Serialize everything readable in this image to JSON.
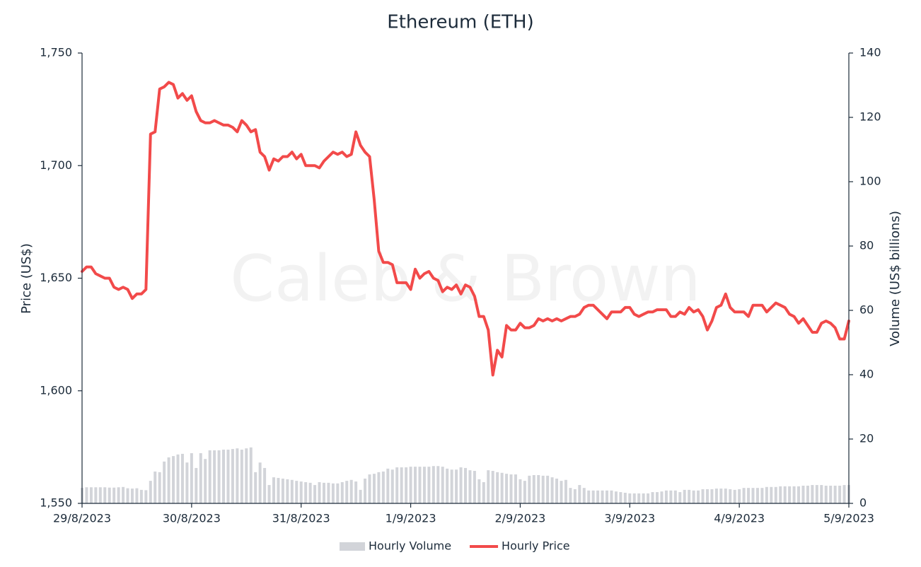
{
  "chart_data": {
    "type": "combo",
    "title": "Ethereum (ETH)",
    "y_label": "Price (US$)",
    "y2_label": "Volume (US$ billions)",
    "watermark": "Caleb & Brown",
    "categories": [
      "29/8/2023",
      null,
      null,
      null,
      null,
      null,
      null,
      null,
      null,
      null,
      null,
      null,
      null,
      null,
      null,
      null,
      null,
      null,
      null,
      null,
      null,
      null,
      null,
      null,
      "30/8/2023",
      null,
      null,
      null,
      null,
      null,
      null,
      null,
      null,
      null,
      null,
      null,
      null,
      null,
      null,
      null,
      null,
      null,
      null,
      null,
      null,
      null,
      null,
      null,
      "31/8/2023",
      null,
      null,
      null,
      null,
      null,
      null,
      null,
      null,
      null,
      null,
      null,
      null,
      null,
      null,
      null,
      null,
      null,
      null,
      null,
      null,
      null,
      null,
      null,
      "1/9/2023",
      null,
      null,
      null,
      null,
      null,
      null,
      null,
      null,
      null,
      null,
      null,
      null,
      null,
      null,
      null,
      null,
      null,
      null,
      null,
      null,
      null,
      null,
      null,
      "2/9/2023",
      null,
      null,
      null,
      null,
      null,
      null,
      null,
      null,
      null,
      null,
      null,
      null,
      null,
      null,
      null,
      null,
      null,
      null,
      null,
      null,
      null,
      null,
      null,
      "3/9/2023",
      null,
      null,
      null,
      null,
      null,
      null,
      null,
      null,
      null,
      null,
      null,
      null,
      null,
      null,
      null,
      null,
      null,
      null,
      null,
      null,
      null,
      null,
      null,
      "4/9/2023",
      null,
      null,
      null,
      null,
      null,
      null,
      null,
      null,
      null,
      null,
      null,
      null,
      null,
      null,
      null,
      null,
      null,
      null,
      null,
      null,
      null,
      null,
      null,
      "5/9/2023"
    ],
    "series": [
      {
        "name": "Hourly Volume",
        "type": "bar",
        "axis": "y2",
        "color": "#d2d4d9",
        "values": [
          4.8,
          5.0,
          5.0,
          5.0,
          5.0,
          5.0,
          4.9,
          4.9,
          5.0,
          5.1,
          4.7,
          4.6,
          4.7,
          4.2,
          4.1,
          7.0,
          9.9,
          9.7,
          13.0,
          14.3,
          14.7,
          15.2,
          15.4,
          12.7,
          15.6,
          11.0,
          15.6,
          13.8,
          16.5,
          16.5,
          16.5,
          16.7,
          16.7,
          16.9,
          17.1,
          16.7,
          17.1,
          17.4,
          9.7,
          12.7,
          11.0,
          5.7,
          8.1,
          7.9,
          7.7,
          7.5,
          7.3,
          7.0,
          6.8,
          6.6,
          6.4,
          5.7,
          6.6,
          6.4,
          6.4,
          6.2,
          6.2,
          6.6,
          7.0,
          7.3,
          6.8,
          4.2,
          7.7,
          9.0,
          9.2,
          9.7,
          9.9,
          10.8,
          10.5,
          11.2,
          11.2,
          11.2,
          11.4,
          11.4,
          11.4,
          11.4,
          11.4,
          11.6,
          11.6,
          11.4,
          10.8,
          10.5,
          10.5,
          11.2,
          11.0,
          10.3,
          10.1,
          7.5,
          6.6,
          10.3,
          10.1,
          9.7,
          9.5,
          9.2,
          9.0,
          9.0,
          7.5,
          7.0,
          8.6,
          8.8,
          8.8,
          8.6,
          8.6,
          8.1,
          7.7,
          7.0,
          7.3,
          4.8,
          4.4,
          5.7,
          4.8,
          4.0,
          4.0,
          4.0,
          4.0,
          4.0,
          4.0,
          3.7,
          3.5,
          3.3,
          3.1,
          3.1,
          3.1,
          3.1,
          3.1,
          3.5,
          3.5,
          3.7,
          4.0,
          4.0,
          4.0,
          3.5,
          4.2,
          4.2,
          4.0,
          4.0,
          4.4,
          4.4,
          4.4,
          4.6,
          4.6,
          4.6,
          4.4,
          4.2,
          4.4,
          4.8,
          4.8,
          4.8,
          4.8,
          4.8,
          5.1,
          5.1,
          5.1,
          5.3,
          5.3,
          5.3,
          5.3,
          5.3,
          5.5,
          5.5,
          5.7,
          5.7,
          5.7,
          5.5,
          5.5,
          5.5,
          5.5,
          5.7,
          5.7
        ]
      },
      {
        "name": "Hourly Price",
        "type": "line",
        "color": "#f24a4a",
        "values": [
          1653,
          1655,
          1655,
          1652,
          1651,
          1650,
          1650,
          1646,
          1645,
          1646,
          1645,
          1641,
          1643,
          1643,
          1645,
          1714,
          1715,
          1734,
          1735,
          1737,
          1736,
          1730,
          1732,
          1729,
          1731,
          1724,
          1720,
          1719,
          1719,
          1720,
          1719,
          1718,
          1718,
          1717,
          1715,
          1720,
          1718,
          1715,
          1716,
          1706,
          1704,
          1698,
          1703,
          1702,
          1704,
          1704,
          1706,
          1703,
          1705,
          1700,
          1700,
          1700,
          1699,
          1702,
          1704,
          1706,
          1705,
          1706,
          1704,
          1705,
          1715,
          1709,
          1706,
          1704,
          1685,
          1662,
          1657,
          1657,
          1656,
          1648,
          1648,
          1648,
          1645,
          1654,
          1650,
          1652,
          1653,
          1650,
          1649,
          1644,
          1646,
          1645,
          1647,
          1643,
          1647,
          1646,
          1642,
          1633,
          1633,
          1627,
          1607,
          1618,
          1615,
          1629,
          1627,
          1627,
          1630,
          1628,
          1628,
          1629,
          1632,
          1631,
          1632,
          1631,
          1632,
          1631,
          1632,
          1633,
          1633,
          1634,
          1637,
          1638,
          1638,
          1636,
          1634,
          1632,
          1635,
          1635,
          1635,
          1637,
          1637,
          1634,
          1633,
          1634,
          1635,
          1635,
          1636,
          1636,
          1636,
          1633,
          1633,
          1635,
          1634,
          1637,
          1635,
          1636,
          1633,
          1627,
          1631,
          1637,
          1638,
          1643,
          1637,
          1635,
          1635,
          1635,
          1633,
          1638,
          1638,
          1638,
          1635,
          1637,
          1639,
          1638,
          1637,
          1634,
          1633,
          1630,
          1632,
          1629,
          1626,
          1626,
          1630,
          1631,
          1630,
          1628,
          1623,
          1623,
          1631
        ]
      }
    ],
    "ylim": [
      1550,
      1750
    ],
    "yticks": [
      {
        "value": 1550,
        "label": "1,550"
      },
      {
        "value": 1600,
        "label": "1,600"
      },
      {
        "value": 1650,
        "label": "1,650"
      },
      {
        "value": 1700,
        "label": "1,700"
      },
      {
        "value": 1750,
        "label": "1,750"
      }
    ],
    "y2lim": [
      0,
      140
    ],
    "y2ticks": [
      0,
      20,
      40,
      60,
      80,
      100,
      120,
      140
    ],
    "legend": "bottom"
  }
}
